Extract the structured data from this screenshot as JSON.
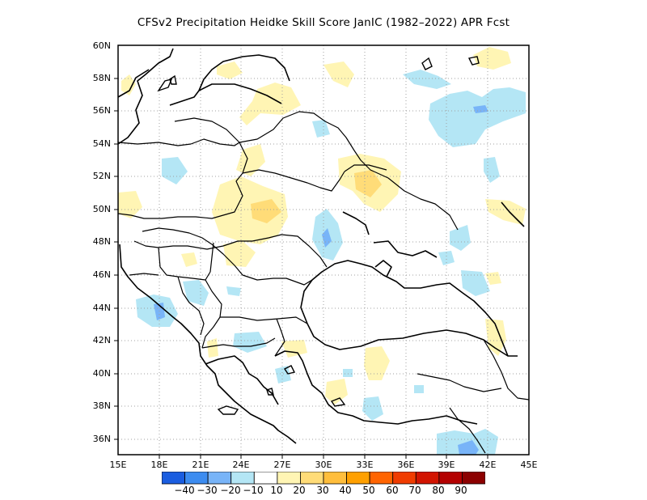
{
  "title": "CFSv2  Precipitation Heidke Skill Score JanIC (1982–2022) APR Fcst",
  "map": {
    "projection": "lat-lon",
    "lon_range": [
      15,
      45
    ],
    "lat_range": [
      35,
      60
    ],
    "lat_labels": [
      "60N",
      "58N",
      "56N",
      "54N",
      "52N",
      "50N",
      "48N",
      "46N",
      "44N",
      "42N",
      "40N",
      "38N",
      "36N"
    ],
    "lon_labels": [
      "15E",
      "18E",
      "21E",
      "24E",
      "27E",
      "30E",
      "33E",
      "36E",
      "39E",
      "42E",
      "45E"
    ],
    "grid": "dotted"
  },
  "colorbar": {
    "labels": [
      "−40",
      "−30",
      "−20",
      "−10",
      "10",
      "20",
      "30",
      "40",
      "50",
      "60",
      "70",
      "80",
      "90"
    ],
    "colors": [
      "#1a5de0",
      "#3c8cf0",
      "#78b4f8",
      "#b4e6f5",
      "#ffffff",
      "#fff5b4",
      "#ffdc78",
      "#ffbe3c",
      "#ffa000",
      "#ff6400",
      "#f03c00",
      "#d21400",
      "#b40000",
      "#8c0000"
    ]
  }
}
